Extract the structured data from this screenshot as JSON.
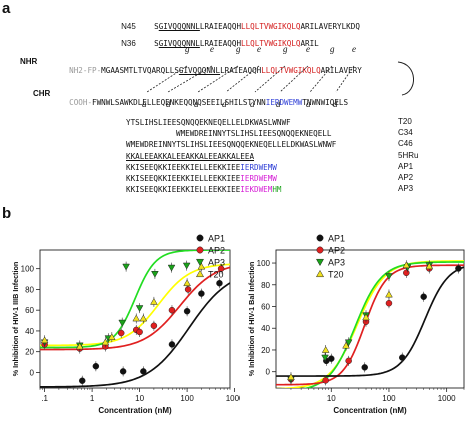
{
  "panel_a": {
    "label": "a",
    "n45": {
      "name": "N45",
      "pre": "S",
      "under": "GIVQQQNNL",
      "mid": "LRAIEAQQH",
      "red": "LLQLTVWGIKQLQ",
      "post": "ARILAVERYLKDQ"
    },
    "n36": {
      "name": "N36",
      "pre": "S",
      "under": "GIVQQQNNL",
      "mid": "LRAIEAQQH",
      "red": "LLQLTVWGIKQLQ",
      "post": "ARIL"
    },
    "heptad_top": [
      "g",
      "e",
      "g",
      "e",
      "g",
      "e",
      "g",
      "e"
    ],
    "nhr": {
      "label": "NHR",
      "gray": "NH2-FP-",
      "pre": "MGAASMTLTVQARQLLS",
      "under": "GIVQQQNNL",
      "mid": "LRAIEAQQH",
      "red": "LLQLTVWGIKQLQ",
      "post": "ARILAVERY"
    },
    "chr": {
      "label": "CHR",
      "gray": "COOH-",
      "seq": "FWNWLSAWKDLELLEQENKEQQNQSEEILSHILSTYNN",
      "blue": "IERDWEMW",
      "post": "TNWNWIQELS"
    },
    "heptad_bottom": [
      "a",
      "d",
      "a",
      "d",
      "a",
      "d",
      "a",
      "d"
    ],
    "peptides": [
      {
        "name": "T20",
        "seq": "YTSLIHSLIEESQNQQEKNEQELLELDKWASLWNWF",
        "blue": "",
        "tail": ""
      },
      {
        "name": "C34",
        "seq": "WMEWDREINNYTSLIHSLIEESQNQQEKNEQELL",
        "blue": "",
        "tail": ""
      },
      {
        "name": "C46",
        "seq": "WMEWDREINNYTSLIHSLIEESQNQQEKNEQELLELDKWASLWNWF",
        "blue": "",
        "tail": ""
      },
      {
        "name": "5HRu",
        "seq": "KKALEEAKKALEEAKKALEEAKKALEEA",
        "blue": "",
        "tail": ""
      },
      {
        "name": "AP1",
        "seq": "KKISEEQKKIEEKKIELLEEKKIEE",
        "blue": "IERDWEMW",
        "tail": ""
      },
      {
        "name": "AP2",
        "seq": "KKISEEQKKIEEKKIELLEEKKIEE",
        "blue": "IERDWEMW",
        "tail": ""
      },
      {
        "name": "AP3",
        "seq": "KKISEEQKKIEEKKIELLEEKKIEE",
        "blue": "IEKDWEM",
        "tail": "HM"
      }
    ]
  },
  "panel_b": {
    "label": "b"
  },
  "colors": {
    "AP1": "#111111",
    "AP2": "#e02020",
    "AP3": "#1aa31a",
    "T20": "#f0e020",
    "AP1_line": "#111111",
    "AP2_line": "#e02020",
    "AP3_line": "#22dd22",
    "T20_line": "#ffff00"
  },
  "chart_data": [
    {
      "type": "scatter",
      "title": "",
      "xlabel": "Concentration (nM)",
      "ylabel": "% Inhibition of HIV-1 IIIB Infection",
      "xscale": "log",
      "xlim": [
        0.08,
        800
      ],
      "ylim": [
        -15,
        118
      ],
      "xticks": [
        ".1",
        "1",
        "10",
        "100",
        "1000"
      ],
      "yticks": [
        "0",
        "20",
        "40",
        "60",
        "80",
        "100"
      ],
      "legend": "top-right",
      "series": [
        {
          "name": "AP1",
          "x": [
            0.62,
            1.2,
            4.5,
            12,
            48,
            100,
            200,
            480
          ],
          "y": [
            -8,
            6,
            1,
            1,
            27,
            59,
            76,
            86
          ]
        },
        {
          "name": "AP2",
          "x": [
            0.1,
            0.55,
            1.9,
            4.1,
            8.5,
            10,
            20,
            48,
            105,
            520
          ],
          "y": [
            27,
            23,
            25,
            38,
            41,
            39,
            45,
            60,
            80,
            100
          ]
        },
        {
          "name": "AP3",
          "x": [
            0.1,
            0.55,
            2.2,
            4.3,
            5.2,
            10,
            21,
            47,
            98
          ],
          "y": [
            29,
            26,
            33,
            48,
            102,
            62,
            95,
            101,
            103
          ]
        },
        {
          "name": "T20",
          "x": [
            0.1,
            0.55,
            1.9,
            2.6,
            8.5,
            12,
            20,
            100,
            200
          ],
          "y": [
            31,
            25,
            29,
            34,
            52,
            52,
            68,
            86,
            102
          ]
        }
      ]
    },
    {
      "type": "scatter",
      "title": "",
      "xlabel": "Concentration (nM)",
      "ylabel": "% Inhibition of HIV-1 Bal Infection",
      "xscale": "log",
      "xlim": [
        1.1,
        2000
      ],
      "ylim": [
        -15,
        112
      ],
      "xticks": [
        "10",
        "100",
        "1000"
      ],
      "yticks": [
        "0",
        "20",
        "40",
        "60",
        "80",
        "100"
      ],
      "legend": "top-left",
      "series": [
        {
          "name": "AP1",
          "x": [
            8.2,
            10,
            38,
            170,
            400,
            1600
          ],
          "y": [
            10,
            12,
            4,
            13,
            69,
            95
          ]
        },
        {
          "name": "AP2",
          "x": [
            2,
            8,
            20,
            40,
            100,
            200,
            500
          ],
          "y": [
            -7,
            -8,
            10,
            46,
            63,
            91,
            95
          ]
        },
        {
          "name": "AP3",
          "x": [
            2,
            7.8,
            20,
            40,
            100,
            210,
            500
          ],
          "y": [
            -7,
            13,
            27,
            52,
            88,
            96,
            98
          ]
        },
        {
          "name": "T20",
          "x": [
            2,
            8,
            18,
            40,
            100,
            200,
            500
          ],
          "y": [
            -5,
            20,
            24,
            50,
            71,
            98,
            97
          ]
        }
      ]
    }
  ]
}
